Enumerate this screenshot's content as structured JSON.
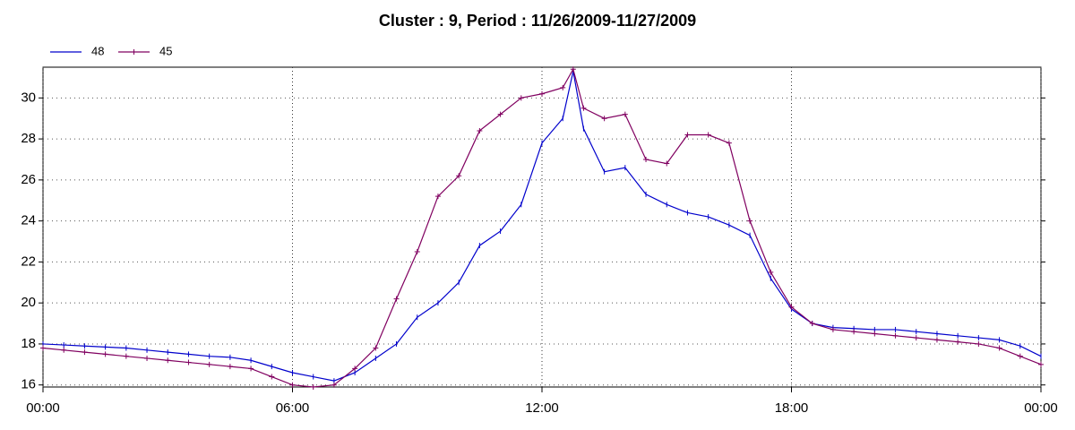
{
  "chart_data": {
    "type": "line",
    "title": "Cluster : 9, Period : 11/26/2009-11/27/2009",
    "x": [
      0,
      0.5,
      1,
      1.5,
      2,
      2.5,
      3,
      3.5,
      4,
      4.5,
      5,
      5.5,
      6,
      6.5,
      7,
      7.5,
      8,
      8.5,
      9,
      9.5,
      10,
      10.5,
      11,
      11.5,
      12,
      12.5,
      12.75,
      13,
      13.5,
      14,
      14.5,
      15,
      15.5,
      16,
      16.5,
      17,
      17.5,
      18,
      18.5,
      19,
      19.5,
      20,
      20.5,
      21,
      21.5,
      22,
      22.5,
      23,
      23.5,
      24
    ],
    "series": [
      {
        "name": "48",
        "color": "#0000cc",
        "values": [
          18.0,
          17.95,
          17.9,
          17.85,
          17.8,
          17.7,
          17.6,
          17.5,
          17.4,
          17.35,
          17.2,
          16.9,
          16.6,
          16.4,
          16.2,
          16.6,
          17.3,
          18.0,
          19.3,
          20.0,
          21.0,
          22.8,
          23.5,
          24.8,
          27.8,
          29.0,
          31.3,
          28.5,
          26.4,
          26.6,
          25.3,
          24.8,
          24.4,
          24.2,
          23.8,
          23.3,
          21.2,
          19.7,
          19.0,
          18.8,
          18.75,
          18.7,
          18.7,
          18.6,
          18.5,
          18.4,
          18.3,
          18.2,
          17.9,
          17.4
        ]
      },
      {
        "name": "45",
        "color": "#800060",
        "values": [
          17.8,
          17.7,
          17.6,
          17.5,
          17.4,
          17.3,
          17.2,
          17.1,
          17.0,
          16.9,
          16.8,
          16.4,
          16.0,
          15.9,
          16.0,
          16.8,
          17.8,
          20.2,
          22.5,
          25.2,
          26.2,
          28.4,
          29.2,
          30.0,
          30.2,
          30.5,
          31.4,
          29.5,
          29.0,
          29.2,
          27.0,
          26.8,
          28.2,
          28.2,
          27.8,
          24.0,
          21.5,
          19.8,
          19.0,
          18.7,
          18.6,
          18.5,
          18.4,
          18.3,
          18.2,
          18.1,
          18.0,
          17.8,
          17.4,
          17.0
        ]
      }
    ],
    "xlim": [
      0,
      24
    ],
    "xticks": [
      {
        "value": 0,
        "label": "00:00"
      },
      {
        "value": 6,
        "label": "06:00"
      },
      {
        "value": 12,
        "label": "12:00"
      },
      {
        "value": 18,
        "label": "18:00"
      },
      {
        "value": 24,
        "label": "00:00"
      }
    ],
    "ylim": [
      15.9,
      31.5
    ],
    "yticks": [
      16,
      18,
      20,
      22,
      24,
      26,
      28,
      30
    ],
    "grid": true,
    "legend": "top-left"
  }
}
